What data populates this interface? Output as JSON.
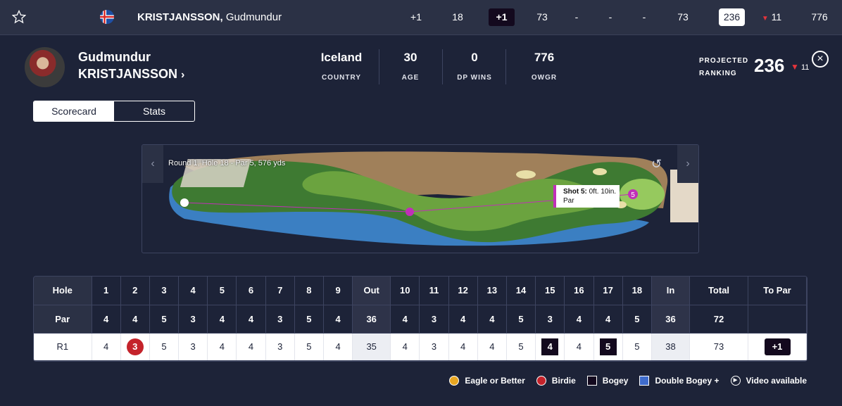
{
  "toprow": {
    "player_last": "KRISTJANSSON,",
    "player_first": "Gudmundur",
    "cells": [
      "+1",
      "18",
      "+1",
      "73",
      "-",
      "-",
      "-",
      "73",
      "236",
      "11",
      "776"
    ]
  },
  "player": {
    "first_name": "Gudmundur",
    "last_name": "KRISTJANSSON",
    "stats": [
      {
        "value": "Iceland",
        "label": "COUNTRY"
      },
      {
        "value": "30",
        "label": "AGE"
      },
      {
        "value": "0",
        "label": "DP WINS"
      },
      {
        "value": "776",
        "label": "OWGR"
      }
    ],
    "projected_label_1": "PROJECTED",
    "projected_label_2": "RANKING",
    "projected_value": "236",
    "projected_delta": "11"
  },
  "tabs": [
    "Scorecard",
    "Stats"
  ],
  "map": {
    "caption": "Round 1, Hole 18 - Par 5, 576 yds",
    "shot_title": "Shot 5:",
    "shot_distance": "0ft. 10in.",
    "shot_result": "Par",
    "ball_number": "5"
  },
  "scorecard": {
    "header": [
      "Hole",
      "1",
      "2",
      "3",
      "4",
      "5",
      "6",
      "7",
      "8",
      "9",
      "Out",
      "10",
      "11",
      "12",
      "13",
      "14",
      "15",
      "16",
      "17",
      "18",
      "In",
      "Total",
      "To Par"
    ],
    "par": [
      "Par",
      "4",
      "4",
      "5",
      "3",
      "4",
      "4",
      "3",
      "5",
      "4",
      "36",
      "4",
      "3",
      "4",
      "4",
      "5",
      "3",
      "4",
      "4",
      "5",
      "36",
      "72",
      ""
    ],
    "r1": [
      "R1",
      "4",
      "3",
      "5",
      "3",
      "4",
      "4",
      "3",
      "5",
      "4",
      "35",
      "4",
      "3",
      "4",
      "4",
      "5",
      "4",
      "4",
      "5",
      "5",
      "38",
      "73",
      "+1"
    ],
    "r1_marks": [
      "",
      "",
      "birdie",
      "",
      "",
      "",
      "",
      "",
      "",
      "",
      "",
      "",
      "",
      "",
      "",
      "",
      "bogey",
      "",
      "bogey",
      "",
      "",
      "",
      "topar"
    ]
  },
  "legend": [
    "Eagle or Better",
    "Birdie",
    "Bogey",
    "Double Bogey +",
    "Video available"
  ],
  "colors": {
    "background": "#1d2338",
    "birdie": "#c4232b",
    "eagle": "#e8a621",
    "bogey": "#13091e",
    "double_bogey": "#3f6ccd",
    "shot_marker": "#c12fb8"
  }
}
